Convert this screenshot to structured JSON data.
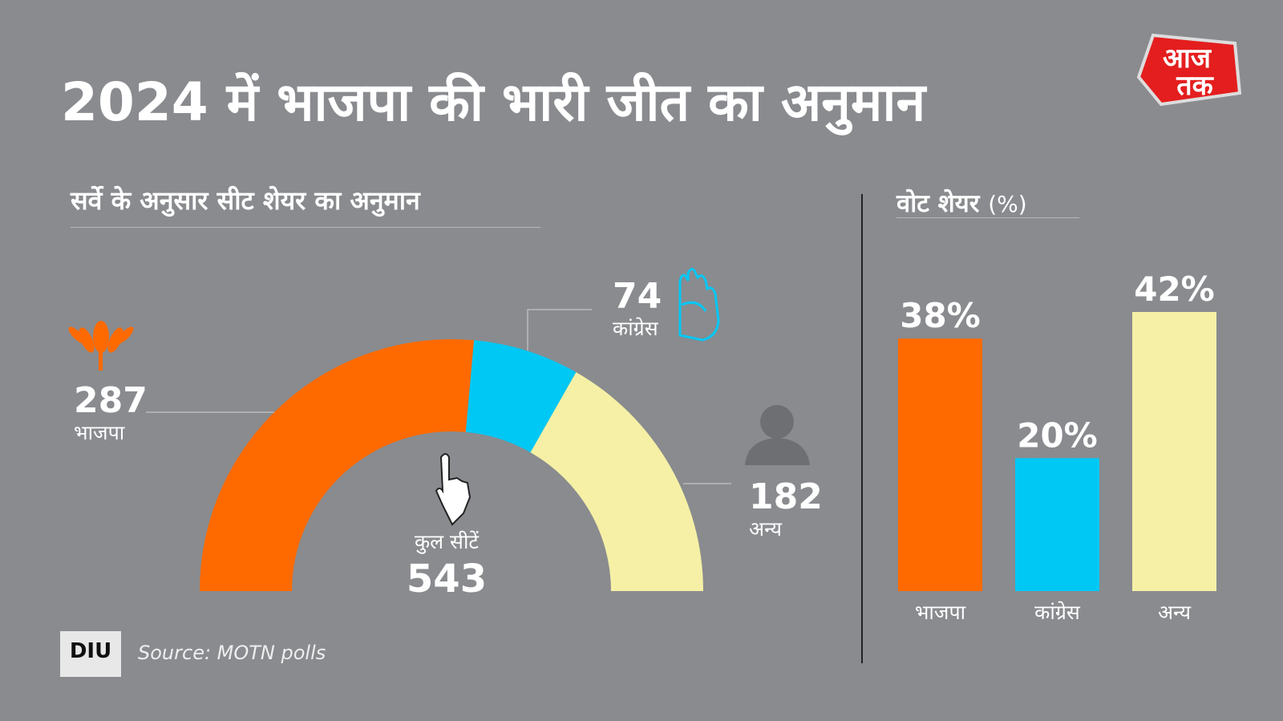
{
  "title": "2024 में भाजपा की भारी जीत का अनुमान",
  "logo_text": "आज तक",
  "source": "Source: MOTN polls",
  "source_logo": "DIU",
  "colors": {
    "bjp": "#ff6a00",
    "congress": "#00c8f5",
    "others": "#f5f0a5",
    "background": "#898b8f"
  },
  "chart_data": [
    {
      "type": "pie",
      "subtype": "half-donut",
      "title": "सर्वे के अनुसार सीट शेयर का अनुमान",
      "total_label": "कुल सीटें",
      "total": 543,
      "categories": [
        "भाजपा",
        "कांग्रेस",
        "अन्य"
      ],
      "values": [
        287,
        74,
        182
      ],
      "icons": [
        "lotus-icon",
        "hand-icon",
        "person-icon"
      ]
    },
    {
      "type": "bar",
      "title": "वोट शेयर",
      "title_unit": "(%)",
      "categories": [
        "भाजपा",
        "कांग्रेस",
        "अन्य"
      ],
      "values": [
        38,
        20,
        42
      ],
      "value_labels": [
        "38%",
        "20%",
        "42%"
      ],
      "ylim": [
        0,
        42
      ],
      "grid": false
    }
  ]
}
